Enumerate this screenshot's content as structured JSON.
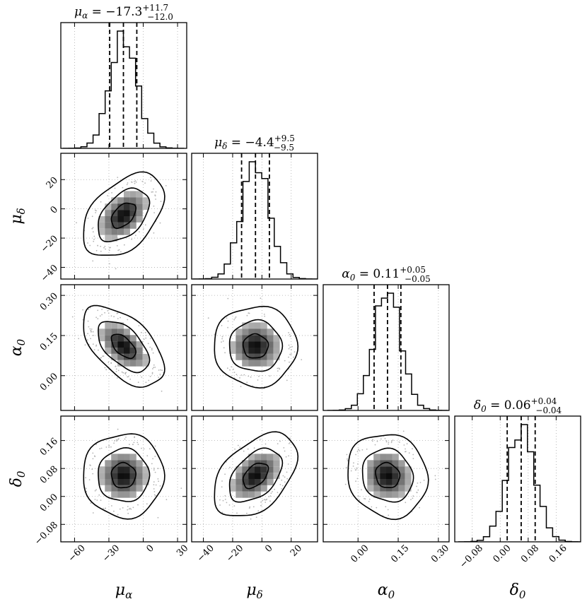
{
  "chart_data": {
    "type": "corner",
    "parameters": [
      {
        "symbol": "μ",
        "subscript": "α",
        "label": "μ_α",
        "title_value": "−17.3",
        "title_plus": "+11.7",
        "title_minus": "−12.0",
        "median": -17.3,
        "q16": -29.3,
        "q84": -5.6,
        "range": [
          -72,
          38
        ],
        "ticks": [
          -60,
          -30,
          0,
          30
        ],
        "tick_labels": [
          "−60",
          "−30",
          "0",
          "30"
        ],
        "sigma": 11.8
      },
      {
        "symbol": "μ",
        "subscript": "δ",
        "label": "μ_δ",
        "title_value": "−4.4",
        "title_plus": "+9.5",
        "title_minus": "−9.5",
        "median": -4.4,
        "q16": -13.9,
        "q84": 5.1,
        "range": [
          -48,
          38
        ],
        "ticks": [
          -40,
          -20,
          0,
          20
        ],
        "tick_labels": [
          "−40",
          "−20",
          "0",
          "20"
        ],
        "sigma": 9.5
      },
      {
        "symbol": "α",
        "subscript": "0",
        "label": "α_0",
        "title_value": "0.11",
        "title_plus": "+0.05",
        "title_minus": "−0.05",
        "median": 0.11,
        "q16": 0.06,
        "q84": 0.16,
        "range": [
          -0.13,
          0.34
        ],
        "ticks": [
          0.0,
          0.15,
          0.3
        ],
        "tick_labels": [
          "0.00",
          "0.15",
          "0.30"
        ],
        "sigma": 0.05
      },
      {
        "symbol": "δ",
        "subscript": "0",
        "label": "δ_0",
        "title_value": "0.06",
        "title_plus": "+0.04",
        "title_minus": "−0.04",
        "median": 0.06,
        "q16": 0.02,
        "q84": 0.1,
        "range": [
          -0.13,
          0.23
        ],
        "ticks": [
          -0.08,
          0.0,
          0.08,
          0.16
        ],
        "tick_labels": [
          "−0.08",
          "0.00",
          "0.08",
          "0.16"
        ],
        "sigma": 0.04
      }
    ],
    "correlations": {
      "1_0": 0.45,
      "2_0": -0.55,
      "2_1": 0.0,
      "3_0": 0.0,
      "3_1": 0.45,
      "3_2": -0.1
    },
    "histogram_bins": 20,
    "contour_levels": [
      0.5,
      0.95,
      0.997
    ],
    "quantile_lines": [
      0.16,
      0.5,
      0.84
    ],
    "grid": true,
    "colors": {
      "line": "#000000",
      "grid": "#aaaaaa",
      "points": "#b4b4b4"
    }
  }
}
